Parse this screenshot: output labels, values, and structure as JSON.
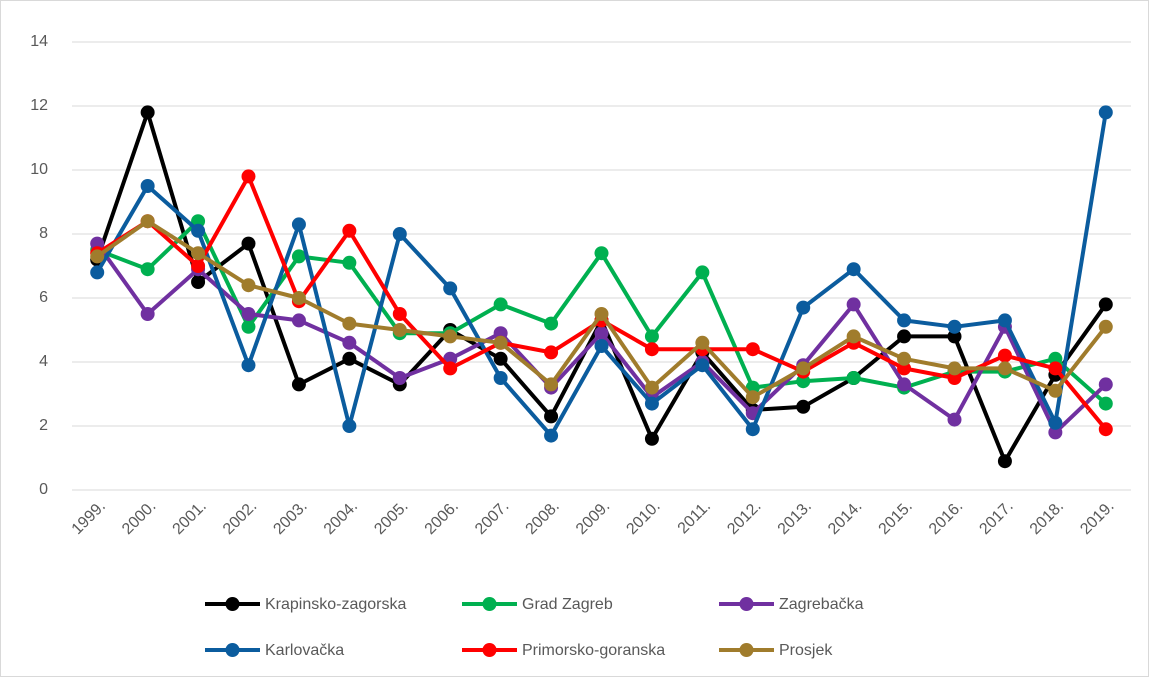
{
  "chart_data": {
    "type": "line",
    "categories": [
      "1999.",
      "2000.",
      "2001.",
      "2002.",
      "2003.",
      "2004.",
      "2005.",
      "2006.",
      "2007.",
      "2008.",
      "2009.",
      "2010.",
      "2011.",
      "2012.",
      "2013.",
      "2014.",
      "2015.",
      "2016.",
      "2017.",
      "2018.",
      "2019."
    ],
    "series": [
      {
        "name": "Krapinsko-zagorska",
        "color": "#000000",
        "values": [
          7.2,
          11.8,
          6.5,
          7.7,
          3.3,
          4.1,
          3.3,
          5.0,
          4.1,
          2.3,
          5.3,
          1.6,
          4.3,
          2.5,
          2.6,
          3.5,
          4.8,
          4.8,
          0.9,
          3.6,
          5.8
        ]
      },
      {
        "name": "Grad Zagreb",
        "color": "#00b050",
        "values": [
          7.5,
          6.9,
          8.4,
          5.1,
          7.3,
          7.1,
          4.9,
          4.9,
          5.8,
          5.2,
          7.4,
          4.8,
          6.8,
          3.2,
          3.4,
          3.5,
          3.2,
          3.7,
          3.7,
          4.1,
          2.7
        ]
      },
      {
        "name": "Zagrebačka",
        "color": "#7030a0",
        "values": [
          7.7,
          5.5,
          6.9,
          5.5,
          5.3,
          4.6,
          3.5,
          4.1,
          4.9,
          3.2,
          4.9,
          2.9,
          4.0,
          2.4,
          3.9,
          5.8,
          3.3,
          2.2,
          5.1,
          1.8,
          3.3
        ]
      },
      {
        "name": "Karlovačka",
        "color": "#0b5c9e",
        "values": [
          6.8,
          9.5,
          8.1,
          3.9,
          8.3,
          2.0,
          8.0,
          6.3,
          3.5,
          1.7,
          4.5,
          2.7,
          3.9,
          1.9,
          5.7,
          6.9,
          5.3,
          5.1,
          5.3,
          2.1,
          11.8
        ]
      },
      {
        "name": "Primorsko-goranska",
        "color": "#ff0000",
        "values": [
          7.4,
          8.4,
          7.0,
          9.8,
          5.9,
          8.1,
          5.5,
          3.8,
          4.6,
          4.3,
          5.3,
          4.4,
          4.4,
          4.4,
          3.7,
          4.6,
          3.8,
          3.5,
          4.2,
          3.8,
          1.9
        ]
      },
      {
        "name": "Prosjek",
        "color": "#a07c2c",
        "values": [
          7.3,
          8.4,
          7.4,
          6.4,
          6.0,
          5.2,
          5.0,
          4.8,
          4.6,
          3.3,
          5.5,
          3.2,
          4.6,
          2.9,
          3.8,
          4.8,
          4.1,
          3.8,
          3.8,
          3.1,
          5.1
        ]
      }
    ],
    "ylim": [
      0,
      14
    ],
    "yticks": [
      0,
      2,
      4,
      6,
      8,
      10,
      12,
      14
    ],
    "grid": true
  }
}
